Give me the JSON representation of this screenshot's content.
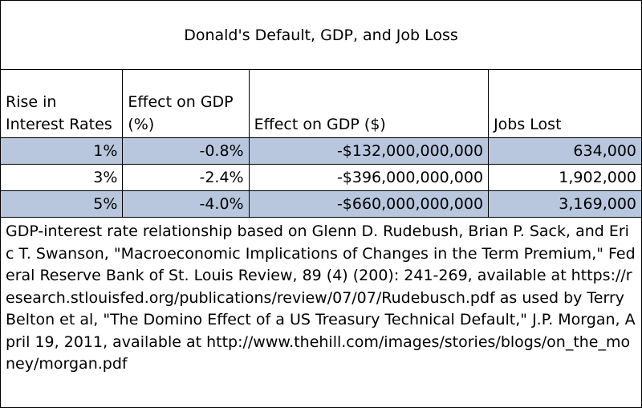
{
  "title": "Donald's Default, GDP, and Job Loss",
  "columns": [
    "Rise in Interest Rates",
    "Effect on GDP (%)",
    "Effect on GDP ($)",
    "Jobs Lost"
  ],
  "rows": [
    {
      "rate": "1%",
      "gdp_pct": "-0.8%",
      "gdp_usd": "-$132,000,000,000",
      "jobs": "634,000"
    },
    {
      "rate": "3%",
      "gdp_pct": "-2.4%",
      "gdp_usd": "-$396,000,000,000",
      "jobs": "1,902,000"
    },
    {
      "rate": "5%",
      "gdp_pct": "-4.0%",
      "gdp_usd": "-$660,000,000,000",
      "jobs": "3,169,000"
    }
  ],
  "shaded_row_color": "#b8c7de",
  "note": "GDP-interest rate relationship based on Glenn D. Rudebush, Brian P. Sack, and Eric T. Swanson, \"Macroeconomic Implications of Changes in the Term Premium,\" Federal Reserve Bank of St. Louis Review, 89 (4) (200): 241-269, available at https://research.stlouisfed.org/publications/review/07/07/Rudebusch.pdf as used by Terry Belton et al, \"The Domino Effect of a US Treasury Technical Default,\" J.P. Morgan, April 19, 2011, available at http://www.thehill.com/images/stories/blogs/on_the_money/morgan.pdf"
}
